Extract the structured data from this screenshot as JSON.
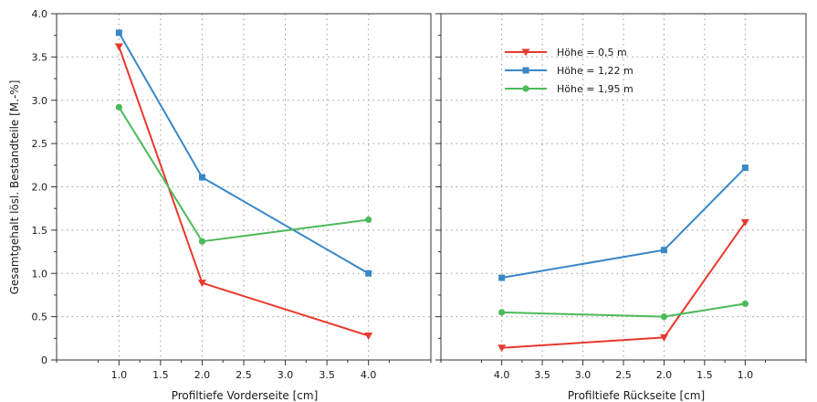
{
  "chart_data": [
    {
      "type": "line",
      "xlabel": "Profiltiefe Vorderseite [cm]",
      "ylabel": "Gesamtgehalt lösl. Bestandteile [M.-%]",
      "xlim": [
        0.25,
        4.75
      ],
      "ylim": [
        0,
        4.0
      ],
      "x_ticks": [
        "1.0",
        "1.5",
        "2.0",
        "2.5",
        "3.0",
        "3.5",
        "4.0"
      ],
      "y_ticks": [
        "0",
        "0.5",
        "1.0",
        "1.5",
        "2.0",
        "2.5",
        "3.0",
        "3.5",
        "4.0"
      ],
      "grid": true,
      "series": [
        {
          "name": "Höhe  = 0,5 m",
          "color": "#e8392e",
          "marker": "triangle-down",
          "x": [
            1.0,
            2.0,
            4.0
          ],
          "y": [
            3.62,
            0.89,
            0.28
          ]
        },
        {
          "name": "Höhe = 1,22 m",
          "color": "#3a87c8",
          "marker": "square",
          "x": [
            1.0,
            2.0,
            4.0
          ],
          "y": [
            3.78,
            2.11,
            1.0
          ]
        },
        {
          "name": "Höhe = 1,95 m",
          "color": "#4cba5a",
          "marker": "circle",
          "x": [
            1.0,
            2.0,
            4.0
          ],
          "y": [
            2.92,
            1.37,
            1.62
          ]
        }
      ]
    },
    {
      "type": "line",
      "xlabel": "Profiltiefe Rückseite [cm]",
      "xlim": [
        4.75,
        0.25
      ],
      "x_reversed": true,
      "ylim": [
        0,
        4.0
      ],
      "x_ticks": [
        "4.0",
        "3.5",
        "3.0",
        "2.5",
        "2.0",
        "1.5",
        "1.0"
      ],
      "grid": true,
      "legend": {
        "placement": "top-center",
        "entries": [
          "Höhe  = 0,5 m",
          "Höhe = 1,22 m",
          "Höhe = 1,95 m"
        ]
      },
      "series": [
        {
          "name": "Höhe  = 0,5 m",
          "color": "#e8392e",
          "marker": "triangle-down",
          "x": [
            4.0,
            2.0,
            1.0
          ],
          "y": [
            0.14,
            0.26,
            1.59
          ]
        },
        {
          "name": "Höhe = 1,22 m",
          "color": "#3a87c8",
          "marker": "square",
          "x": [
            4.0,
            2.0,
            1.0
          ],
          "y": [
            0.95,
            1.27,
            2.22
          ]
        },
        {
          "name": "Höhe = 1,95 m",
          "color": "#4cba5a",
          "marker": "circle",
          "x": [
            4.0,
            2.0,
            1.0
          ],
          "y": [
            0.55,
            0.5,
            0.65
          ]
        }
      ]
    }
  ]
}
